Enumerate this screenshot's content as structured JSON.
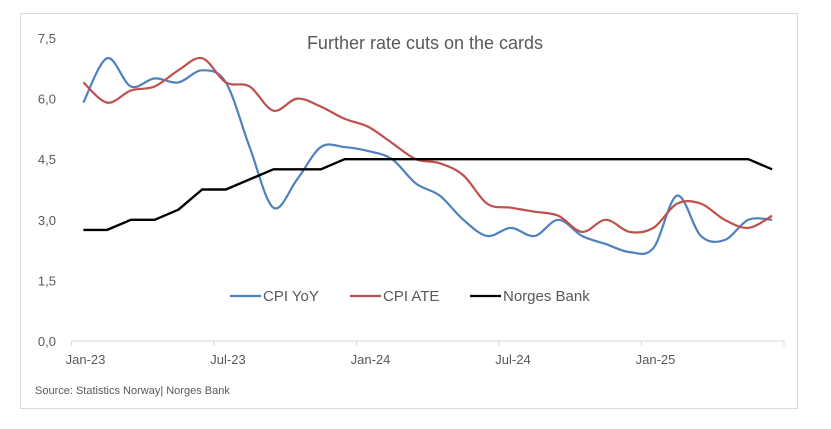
{
  "chart_data": {
    "type": "line",
    "title": "Further rate cuts on the cards",
    "xlabel": "",
    "ylabel": "",
    "ylim": [
      0,
      7.5
    ],
    "yticks": [
      "0,0",
      "1,5",
      "3,0",
      "4,5",
      "6,0",
      "7,5"
    ],
    "ytick_values": [
      0,
      1.5,
      3.0,
      4.5,
      6.0,
      7.5
    ],
    "xticks": [
      "Jan-23",
      "Jul-23",
      "Jan-24",
      "Jul-24",
      "Jan-25"
    ],
    "grid": false,
    "legend_position": "center-bottom",
    "x": [
      "Jan-23",
      "Feb-23",
      "Mar-23",
      "Apr-23",
      "May-23",
      "Jun-23",
      "Jul-23",
      "Aug-23",
      "Sep-23",
      "Oct-23",
      "Nov-23",
      "Dec-23",
      "Jan-24",
      "Feb-24",
      "Mar-24",
      "Apr-24",
      "May-24",
      "Jun-24",
      "Jul-24",
      "Aug-24",
      "Sep-24",
      "Oct-24",
      "Nov-24",
      "Dec-24",
      "Jan-25",
      "Feb-25",
      "Mar-25",
      "Apr-25",
      "May-25",
      "Jun-25"
    ],
    "series": [
      {
        "name": "CPI YoY",
        "color": "#4f81bd",
        "smooth": true,
        "values": [
          5.9,
          7.0,
          6.3,
          6.5,
          6.4,
          6.7,
          6.4,
          4.8,
          3.3,
          4.0,
          4.8,
          4.8,
          4.7,
          4.5,
          3.9,
          3.6,
          3.0,
          2.6,
          2.8,
          2.6,
          3.0,
          2.6,
          2.4,
          2.2,
          2.3,
          3.6,
          2.6,
          2.5,
          3.0,
          3.0
        ]
      },
      {
        "name": "CPI ATE",
        "color": "#c0504d",
        "smooth": true,
        "values": [
          6.4,
          5.9,
          6.2,
          6.3,
          6.7,
          7.0,
          6.4,
          6.3,
          5.7,
          6.0,
          5.8,
          5.5,
          5.3,
          4.9,
          4.5,
          4.4,
          4.1,
          3.4,
          3.3,
          3.2,
          3.1,
          2.7,
          3.0,
          2.7,
          2.8,
          3.4,
          3.4,
          3.0,
          2.8,
          3.1
        ]
      },
      {
        "name": "Norges Bank",
        "color": "#000000",
        "smooth": false,
        "values": [
          2.75,
          2.75,
          3.0,
          3.0,
          3.25,
          3.75,
          3.75,
          4.0,
          4.25,
          4.25,
          4.25,
          4.5,
          4.5,
          4.5,
          4.5,
          4.5,
          4.5,
          4.5,
          4.5,
          4.5,
          4.5,
          4.5,
          4.5,
          4.5,
          4.5,
          4.5,
          4.5,
          4.5,
          4.5,
          4.25
        ]
      }
    ],
    "source": "Source: Statistics Norway| Norges Bank"
  }
}
